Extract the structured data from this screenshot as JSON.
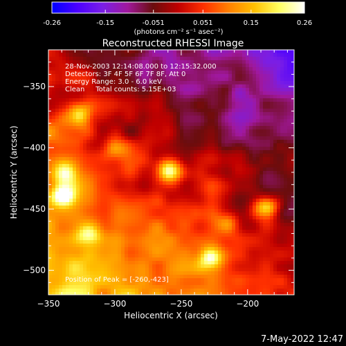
{
  "colorbar": {
    "tick_labels": [
      "-0.26",
      "-0.15",
      "-0.051",
      "0.051",
      "0.15",
      "0.26"
    ],
    "tick_values": [
      -0.26,
      -0.15,
      -0.051,
      0.051,
      0.15,
      0.26
    ],
    "range": [
      -0.26,
      0.26
    ],
    "units_label": "(photons cm⁻² s⁻¹ asec⁻²)",
    "colormap": [
      "#0000ff",
      "#4b00ff",
      "#7a1ee6",
      "#a0189c",
      "#6a0d0d",
      "#c00000",
      "#ff3000",
      "#ff8000",
      "#ffc000",
      "#ffff60",
      "#ffffff"
    ]
  },
  "chart_data": {
    "type": "heatmap",
    "title": "Reconstructed RHESSI Image",
    "xlabel": "Heliocentric X (arcsec)",
    "ylabel": "Heliocentric Y (arcsec)",
    "xlim": [
      -350,
      -165
    ],
    "ylim": [
      -520,
      -320
    ],
    "x_ticks": [
      -350,
      -300,
      -250,
      -200
    ],
    "y_ticks": [
      -350,
      -400,
      -450,
      -500
    ],
    "x_tick_labels": [
      "−350",
      "−300",
      "−250",
      "−200"
    ],
    "y_tick_labels": [
      "−350",
      "−400",
      "−450",
      "−500"
    ],
    "peak": [
      -260,
      -423
    ],
    "info_lines": [
      "28-Nov-2003 12:14:08.000 to 12:15:32.000",
      "Detectors: 3F 4F 5F 6F 7F 8F, Att 0",
      "Energy Range: 3.0 - 6.0 keV",
      "Clean     Total counts: 5.15E+03"
    ],
    "peak_label": "Position of Peak = [-260,-423]",
    "bright_sources": [
      {
        "x": -259,
        "y": -419,
        "intensity": 0.26
      },
      {
        "x": -327,
        "y": -373,
        "intensity": 0.19
      },
      {
        "x": -338,
        "y": -420,
        "intensity": 0.18
      },
      {
        "x": -339,
        "y": -439,
        "intensity": 0.2
      },
      {
        "x": -186,
        "y": -448,
        "intensity": 0.2
      },
      {
        "x": -228,
        "y": -490,
        "intensity": 0.17
      },
      {
        "x": -300,
        "y": -400,
        "intensity": 0.12
      },
      {
        "x": -320,
        "y": -470,
        "intensity": 0.14
      },
      {
        "x": -215,
        "y": -462,
        "intensity": 0.13
      }
    ],
    "dim_region": "upper-right (negative flux, blue/purple)"
  },
  "footer": {
    "timestamp": "7-May-2022 12:47"
  }
}
